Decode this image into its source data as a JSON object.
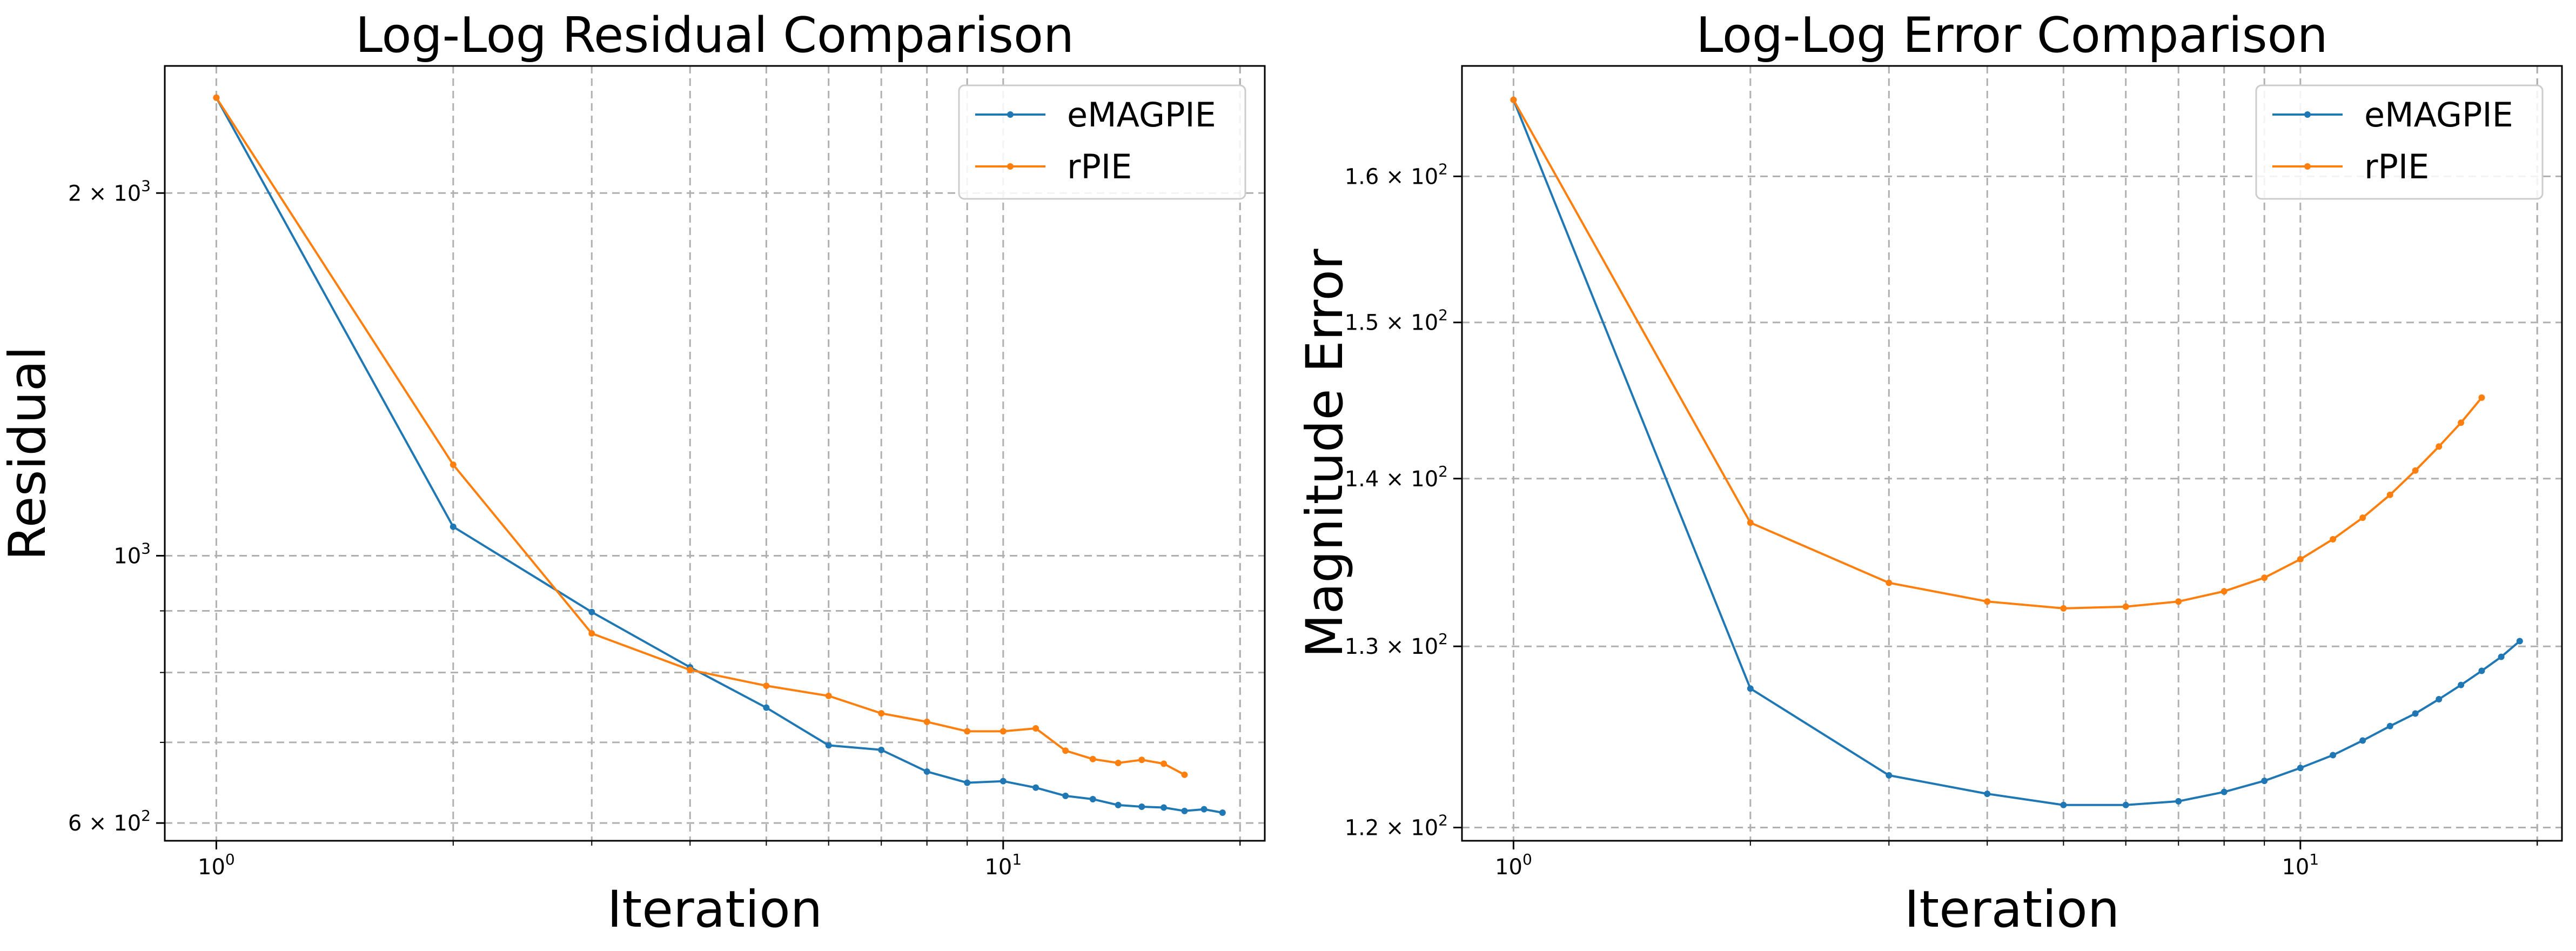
{
  "chart_data": [
    {
      "type": "line",
      "title": "Log-Log Residual Comparison",
      "xlabel": "Iteration",
      "ylabel": "Residual",
      "xscale": "log",
      "yscale": "log",
      "xlim": [
        0.86,
        21.5
      ],
      "ylim": [
        580,
        2550
      ],
      "grid": true,
      "legend": "top-right",
      "xticks": [
        {
          "value": 1,
          "mantissa": "10",
          "exp": "0"
        },
        {
          "value": 10,
          "mantissa": "10",
          "exp": "1"
        }
      ],
      "yticks": [
        {
          "value": 600,
          "mantissa": "6 × 10",
          "exp": "2"
        },
        {
          "value": 1000,
          "mantissa": "10",
          "exp": "3"
        },
        {
          "value": 2000,
          "mantissa": "2 × 10",
          "exp": "3"
        }
      ],
      "series": [
        {
          "name": "eMAGPIE",
          "color": "#1f77b4",
          "x": [
            1,
            2,
            3,
            4,
            5,
            6,
            7,
            8,
            9,
            10,
            11,
            12,
            13,
            14,
            15,
            16,
            17,
            18,
            19
          ],
          "y": [
            2400,
            1057,
            898,
            808,
            748,
            696,
            690,
            662,
            648,
            650,
            642,
            632,
            628,
            621,
            619,
            618,
            614,
            616,
            612
          ]
        },
        {
          "name": "rPIE",
          "color": "#ff7f0e",
          "x": [
            1,
            2,
            3,
            4,
            5,
            6,
            7,
            8,
            9,
            10,
            11,
            12,
            13,
            14,
            15,
            16,
            17
          ],
          "y": [
            2400,
            1190,
            862,
            804,
            780,
            765,
            740,
            728,
            715,
            715,
            719,
            689,
            678,
            673,
            677,
            672,
            658
          ]
        }
      ]
    },
    {
      "type": "line",
      "title": "Log-Log Error Comparison",
      "xlabel": "Iteration",
      "ylabel": "Magnitude Error",
      "xscale": "log",
      "yscale": "log",
      "xlim": [
        0.86,
        21.5
      ],
      "ylim": [
        119.3,
        168
      ],
      "grid": true,
      "legend": "top-right",
      "xticks": [
        {
          "value": 1,
          "mantissa": "10",
          "exp": "0"
        },
        {
          "value": 10,
          "mantissa": "10",
          "exp": "1"
        }
      ],
      "yticks": [
        {
          "value": 120,
          "mantissa": "1.2 × 10",
          "exp": "2"
        },
        {
          "value": 130,
          "mantissa": "1.3 × 10",
          "exp": "2"
        },
        {
          "value": 140,
          "mantissa": "1.4 × 10",
          "exp": "2"
        },
        {
          "value": 150,
          "mantissa": "1.5 × 10",
          "exp": "2"
        },
        {
          "value": 160,
          "mantissa": "1.6 × 10",
          "exp": "2"
        }
      ],
      "series": [
        {
          "name": "eMAGPIE",
          "color": "#1f77b4",
          "x": [
            1,
            2,
            3,
            4,
            5,
            6,
            7,
            8,
            9,
            10,
            11,
            12,
            13,
            14,
            15,
            16,
            17,
            18,
            19
          ],
          "y": [
            165.5,
            127.6,
            122.8,
            121.8,
            121.2,
            121.2,
            121.4,
            121.9,
            122.5,
            123.2,
            123.9,
            124.7,
            125.5,
            126.2,
            127.0,
            127.8,
            128.6,
            129.4,
            130.3
          ]
        },
        {
          "name": "rPIE",
          "color": "#ff7f0e",
          "x": [
            1,
            2,
            3,
            4,
            5,
            6,
            7,
            8,
            9,
            10,
            11,
            12,
            13,
            14,
            15,
            16,
            17
          ],
          "y": [
            165.5,
            137.3,
            133.7,
            132.6,
            132.2,
            132.3,
            132.6,
            133.2,
            134.0,
            135.1,
            136.3,
            137.6,
            139.0,
            140.5,
            142.0,
            143.5,
            145.1
          ]
        }
      ]
    }
  ]
}
